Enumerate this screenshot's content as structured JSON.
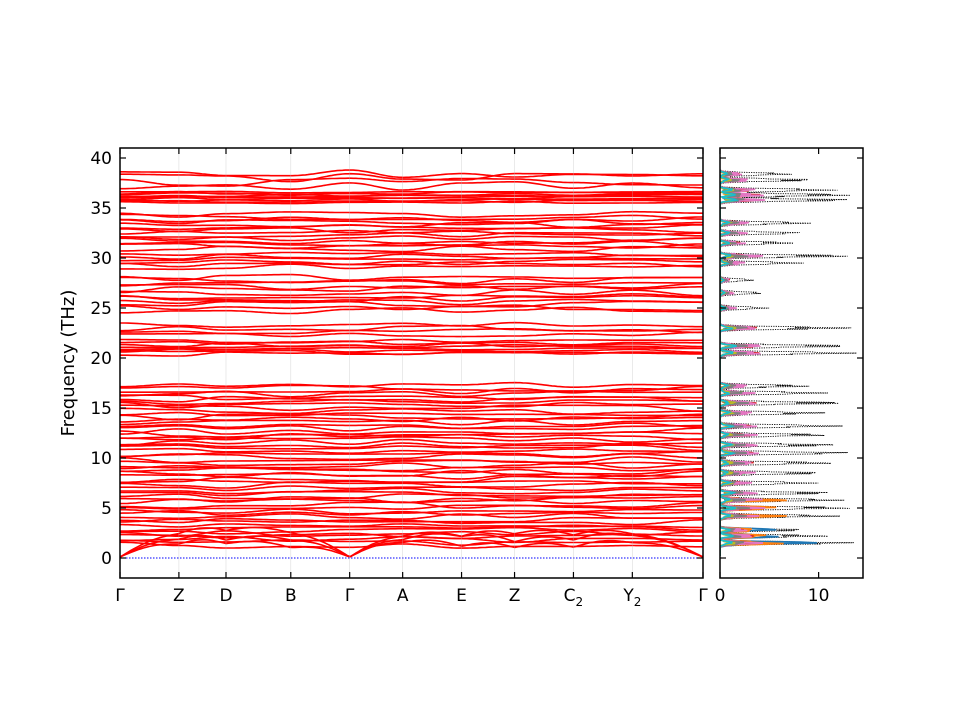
{
  "chart_data": [
    {
      "type": "line",
      "name_hint": "band-structure",
      "ylabel": "Frequency (THz)",
      "ylim": [
        -2,
        41
      ],
      "yticks": [
        0,
        5,
        10,
        15,
        20,
        25,
        30,
        35,
        40
      ],
      "xticks": [
        {
          "pos": 0.0,
          "label": "Γ",
          "sub": ""
        },
        {
          "pos": 1.0,
          "label": "Z",
          "sub": ""
        },
        {
          "pos": 1.8,
          "label": "D",
          "sub": ""
        },
        {
          "pos": 2.9,
          "label": "B",
          "sub": ""
        },
        {
          "pos": 3.9,
          "label": "Γ",
          "sub": ""
        },
        {
          "pos": 4.8,
          "label": "A",
          "sub": ""
        },
        {
          "pos": 5.8,
          "label": "E",
          "sub": ""
        },
        {
          "pos": 6.7,
          "label": "Z",
          "sub": ""
        },
        {
          "pos": 7.7,
          "label": "C",
          "sub": "2"
        },
        {
          "pos": 8.7,
          "label": "Y",
          "sub": "2"
        },
        {
          "pos": 9.9,
          "label": "Γ",
          "sub": ""
        }
      ],
      "xlim": [
        0,
        9.9
      ],
      "band_color": "#ff0000",
      "zero_line_color": "#0000ff",
      "band_groups": [
        {
          "range": [
            0.3,
            17.4
          ],
          "count": 60
        },
        {
          "range": [
            20.3,
            21.8
          ],
          "count": 8
        },
        {
          "range": [
            22.3,
            23.4
          ],
          "count": 4
        },
        {
          "range": [
            24.6,
            28.2
          ],
          "count": 12
        },
        {
          "range": [
            29.0,
            30.5
          ],
          "count": 6
        },
        {
          "range": [
            30.8,
            34.5
          ],
          "count": 14
        },
        {
          "range": [
            35.5,
            36.7
          ],
          "count": 10
        },
        {
          "range": [
            37.0,
            38.6
          ],
          "count": 4
        }
      ]
    },
    {
      "type": "area",
      "name_hint": "density-of-states",
      "xlim": [
        0,
        14.5
      ],
      "xticks": [
        0,
        10
      ],
      "ylim": [
        -2,
        41
      ],
      "total_color": "#000000",
      "partial_colors": [
        "#1f77b4",
        "#ff7f0e",
        "#2ca02c",
        "#d62728",
        "#9467bd",
        "#8c564b",
        "#e377c2",
        "#7f7f7f",
        "#bcbd22",
        "#17becf"
      ],
      "total_peaks": [
        {
          "f": 1.5,
          "v": 14.0
        },
        {
          "f": 2.2,
          "v": 11.5
        },
        {
          "f": 2.8,
          "v": 9.0
        },
        {
          "f": 4.2,
          "v": 12.5
        },
        {
          "f": 5.0,
          "v": 14.0
        },
        {
          "f": 5.8,
          "v": 13.0
        },
        {
          "f": 6.5,
          "v": 12.0
        },
        {
          "f": 7.5,
          "v": 10.0
        },
        {
          "f": 8.5,
          "v": 11.0
        },
        {
          "f": 9.5,
          "v": 12.0
        },
        {
          "f": 10.5,
          "v": 13.5
        },
        {
          "f": 11.3,
          "v": 12.5
        },
        {
          "f": 12.3,
          "v": 11.5
        },
        {
          "f": 13.2,
          "v": 12.5
        },
        {
          "f": 14.5,
          "v": 11.0
        },
        {
          "f": 15.5,
          "v": 13.5
        },
        {
          "f": 16.5,
          "v": 11.0
        },
        {
          "f": 17.2,
          "v": 9.5
        },
        {
          "f": 20.5,
          "v": 14.0
        },
        {
          "f": 21.2,
          "v": 14.0
        },
        {
          "f": 23.0,
          "v": 14.0
        },
        {
          "f": 25.0,
          "v": 5.0
        },
        {
          "f": 26.5,
          "v": 4.5
        },
        {
          "f": 27.8,
          "v": 3.5
        },
        {
          "f": 29.5,
          "v": 8.5
        },
        {
          "f": 30.2,
          "v": 14.0
        },
        {
          "f": 31.5,
          "v": 8.0
        },
        {
          "f": 32.5,
          "v": 8.5
        },
        {
          "f": 33.5,
          "v": 9.5
        },
        {
          "f": 35.8,
          "v": 14.0
        },
        {
          "f": 36.3,
          "v": 14.0
        },
        {
          "f": 36.8,
          "v": 12.0
        },
        {
          "f": 37.8,
          "v": 10.0
        },
        {
          "f": 38.4,
          "v": 7.5
        }
      ]
    }
  ]
}
